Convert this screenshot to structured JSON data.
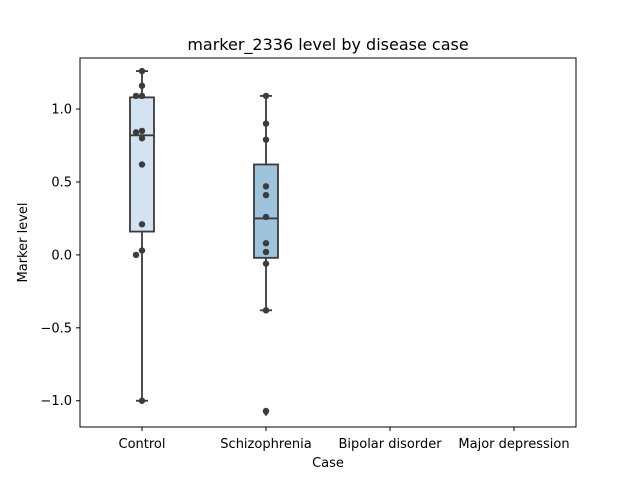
{
  "chart_data": {
    "type": "box",
    "title": "marker_2336 level by disease case",
    "xlabel": "Case",
    "ylabel": "Marker level",
    "categories": [
      "Control",
      "Schizophrenia",
      "Bipolar disorder",
      "Major depression"
    ],
    "ylim": [
      -1.18,
      1.35
    ],
    "yticks": [
      -1.0,
      -0.5,
      0.0,
      0.5,
      1.0
    ],
    "ytick_labels": [
      "−1.0",
      "−0.5",
      "0.0",
      "0.5",
      "1.0"
    ],
    "grid": false,
    "colors": {
      "Control": "#d4e3f2",
      "Schizophrenia": "#9dc3dd",
      "line": "#3a3a3a",
      "point": "#3c3c3c"
    },
    "boxes": [
      {
        "category": "Control",
        "whisker_low": -1.0,
        "q1": 0.16,
        "median": 0.82,
        "q3": 1.08,
        "whisker_high": 1.26,
        "outliers": [],
        "points": [
          1.26,
          1.16,
          1.09,
          1.09,
          0.85,
          0.84,
          0.8,
          0.62,
          0.21,
          0.03,
          0.0,
          -1.0
        ]
      },
      {
        "category": "Schizophrenia",
        "whisker_low": -0.38,
        "q1": -0.02,
        "median": 0.25,
        "q3": 0.62,
        "whisker_high": 1.09,
        "outliers": [
          -1.08
        ],
        "points": [
          1.09,
          0.9,
          0.79,
          0.47,
          0.41,
          0.26,
          0.08,
          0.02,
          -0.06,
          -0.38,
          -1.07
        ]
      },
      {
        "category": "Bipolar disorder",
        "points": []
      },
      {
        "category": "Major depression",
        "points": []
      }
    ]
  }
}
